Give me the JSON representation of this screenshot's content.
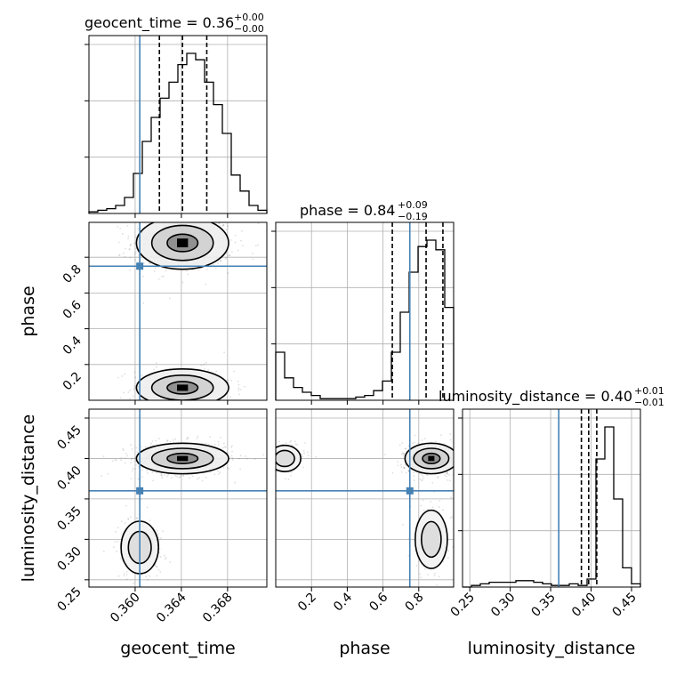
{
  "chart_data": {
    "type": "scatter",
    "parameters": [
      "geocent_time",
      "phase",
      "luminosity_distance"
    ],
    "truths": {
      "geocent_time": 0.3604,
      "phase": 0.75,
      "luminosity_distance": 0.36
    },
    "colors": {
      "truth": "#4682b4",
      "hist": "#000000",
      "grid": "#b0b0b0"
    },
    "titles": {
      "geocent_time": {
        "param": "geocent_time",
        "median": "0.36",
        "plus": "+0.00",
        "minus": "−0.00"
      },
      "phase": {
        "param": "phase",
        "median": "0.84",
        "plus": "+0.09",
        "minus": "−0.19"
      },
      "luminosity_distance": {
        "param": "luminosity_distance",
        "median": "0.40",
        "plus": "+0.01",
        "minus": "−0.01"
      }
    },
    "axis_labels": {
      "geocent_time": "geocent_time",
      "phase": "phase",
      "luminosity_distance": "luminosity_distance"
    },
    "ticks": {
      "geocent_time": [
        "0.360",
        "0.364",
        "0.368"
      ],
      "phase": [
        "0.2",
        "0.4",
        "0.6",
        "0.8"
      ],
      "luminosity_distance": [
        "0.25",
        "0.30",
        "0.35",
        "0.40",
        "0.45"
      ]
    },
    "ranges": {
      "geocent_time": [
        0.356,
        0.3714
      ],
      "phase": [
        0.0,
        0.995
      ],
      "luminosity_distance": [
        0.241,
        0.461
      ]
    },
    "quantiles": {
      "geocent_time": [
        0.3621,
        0.3641,
        0.3662
      ],
      "phase": [
        0.652,
        0.841,
        0.935
      ],
      "luminosity_distance": [
        0.388,
        0.397,
        0.407
      ]
    },
    "hist1d": {
      "geocent_time": [
        1,
        2,
        3,
        5,
        10,
        25,
        45,
        60,
        72,
        82,
        93,
        100,
        96,
        82,
        68,
        50,
        24,
        14,
        5,
        2
      ],
      "phase": [
        30,
        14,
        8,
        5,
        3,
        1,
        1,
        1,
        1,
        2,
        3,
        6,
        12,
        30,
        55,
        80,
        96,
        100,
        94,
        58
      ],
      "luminosity_distance": [
        0,
        1,
        2,
        3,
        3,
        3,
        4,
        4,
        3,
        2,
        1,
        1,
        2,
        1,
        5,
        80,
        100,
        55,
        12,
        2
      ]
    },
    "scatter_clusters": {
      "phase_vs_geocent_time": [
        {
          "cx": 0.3641,
          "cy": 0.88,
          "sx": 0.0019,
          "sy": 0.07,
          "n": 650
        },
        {
          "cx": 0.3641,
          "cy": 0.07,
          "sx": 0.0019,
          "sy": 0.05,
          "n": 320
        }
      ],
      "luminosity_distance_vs_geocent_time": [
        {
          "cx": 0.3641,
          "cy": 0.4,
          "sx": 0.0019,
          "sy": 0.009,
          "n": 700
        },
        {
          "cx": 0.3604,
          "cy": 0.29,
          "sx": 0.0009,
          "sy": 0.018,
          "n": 160
        }
      ],
      "luminosity_distance_vs_phase": [
        {
          "cx": 0.87,
          "cy": 0.4,
          "sx": 0.07,
          "sy": 0.009,
          "n": 600
        },
        {
          "cx": 0.05,
          "cy": 0.4,
          "sx": 0.05,
          "sy": 0.009,
          "n": 150
        },
        {
          "cx": 0.87,
          "cy": 0.3,
          "sx": 0.05,
          "sy": 0.02,
          "n": 160
        }
      ]
    }
  }
}
